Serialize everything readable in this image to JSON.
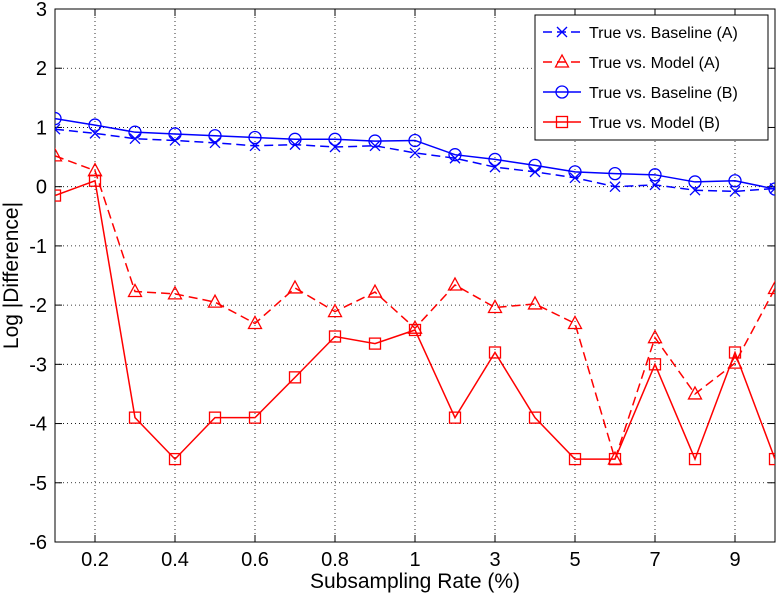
{
  "chart_data": {
    "type": "line",
    "title": "",
    "xlabel": "Subsampling Rate (%)",
    "ylabel": "Log |Difference|",
    "x_ticks": [
      "0.2",
      "0.4",
      "0.6",
      "0.8",
      "1",
      "3",
      "5",
      "7",
      "9"
    ],
    "y_ticks": [
      "3",
      "2",
      "1",
      "0",
      "-1",
      "-2",
      "-3",
      "-4",
      "-5",
      "-6"
    ],
    "ylim": [
      -6,
      3
    ],
    "x_positions": 19,
    "grid": true,
    "legend_position": "top-right",
    "series": [
      {
        "name": "True vs. Baseline (A)",
        "color": "#0000ff",
        "dashed": true,
        "marker": "x",
        "values": [
          0.97,
          0.9,
          0.81,
          0.78,
          0.74,
          0.69,
          0.71,
          0.67,
          0.69,
          0.57,
          0.48,
          0.33,
          0.25,
          0.15,
          0.0,
          0.03,
          -0.06,
          -0.08,
          -0.03
        ]
      },
      {
        "name": "True vs. Model (A)",
        "color": "#ff0000",
        "dashed": true,
        "marker": "triangle",
        "values": [
          0.52,
          0.27,
          -1.77,
          -1.81,
          -1.95,
          -2.31,
          -1.71,
          -2.11,
          -1.78,
          -2.39,
          -1.66,
          -2.04,
          -1.98,
          -2.31,
          -4.6,
          -2.55,
          -3.5,
          -2.98,
          -1.72
        ]
      },
      {
        "name": "True vs. Baseline (B)",
        "color": "#0000ff",
        "dashed": false,
        "marker": "circle",
        "values": [
          1.15,
          1.04,
          0.92,
          0.89,
          0.86,
          0.83,
          0.8,
          0.8,
          0.77,
          0.78,
          0.54,
          0.46,
          0.36,
          0.25,
          0.22,
          0.2,
          0.08,
          0.1,
          -0.04
        ]
      },
      {
        "name": "True vs. Model (B)",
        "color": "#ff0000",
        "dashed": false,
        "marker": "square",
        "values": [
          -0.15,
          0.1,
          -3.9,
          -4.6,
          -3.9,
          -3.9,
          -3.22,
          -2.53,
          -2.65,
          -2.42,
          -3.9,
          -2.8,
          -3.9,
          -4.6,
          -4.6,
          -3.0,
          -4.6,
          -2.8,
          -4.6
        ]
      }
    ]
  }
}
